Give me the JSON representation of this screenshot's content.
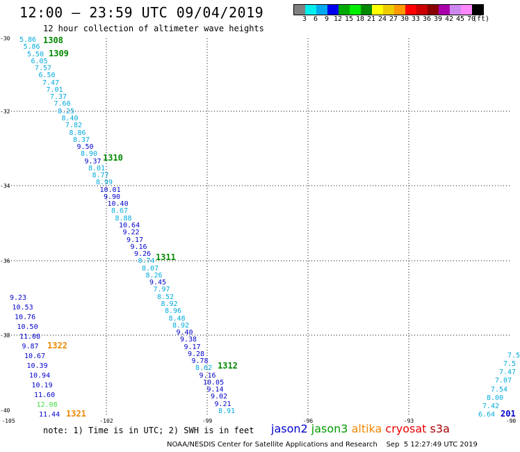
{
  "header": {
    "title": "12:00 – 23:59 UTC 09/04/2019",
    "subtitle": "12 hour collection of altimeter wave heights"
  },
  "legend": {
    "colors": [
      "#808080",
      "#00eeee",
      "#00aaee",
      "#0000ee",
      "#00aa00",
      "#00ee00",
      "#008800",
      "#ffff00",
      "#eecc00",
      "#ff9900",
      "#ff0000",
      "#cc0000",
      "#880000",
      "#aa00aa",
      "#cc88ee",
      "#ff88ff",
      "#000000"
    ],
    "labels": [
      "3",
      "6",
      "9",
      "12",
      "15",
      "18",
      "21",
      "24",
      "27",
      "30",
      "33",
      "36",
      "39",
      "42",
      "45",
      "70",
      "(ft)"
    ]
  },
  "satellite_colors": {
    "light": "#00aadd",
    "blue": "#0000cc",
    "green": "#008800",
    "orange": "#ee8800",
    "lightgreen": "#44dd44"
  },
  "axes": {
    "lat_labels": [
      "-30",
      "-32",
      "-34",
      "-36",
      "-38",
      "-40"
    ],
    "lon_labels": [
      "-105",
      "-102",
      "-99",
      "-96",
      "-93",
      "-90"
    ]
  },
  "tracks": [
    {
      "v": "5.86",
      "c": "light"
    },
    {
      "v": "5.86",
      "c": "light"
    },
    {
      "v": "5.50",
      "c": "light"
    },
    {
      "v": "6.05",
      "c": "light"
    },
    {
      "v": "7.57",
      "c": "light"
    },
    {
      "v": "6.50",
      "c": "light"
    },
    {
      "v": "7.47",
      "c": "light"
    },
    {
      "v": "7.01",
      "c": "light"
    },
    {
      "v": "7.37",
      "c": "light"
    },
    {
      "v": "7.60",
      "c": "light"
    },
    {
      "v": "8.25",
      "c": "light"
    },
    {
      "v": "8.40",
      "c": "light"
    },
    {
      "v": "7.82",
      "c": "light"
    },
    {
      "v": "8.86",
      "c": "light"
    },
    {
      "v": "8.37",
      "c": "light"
    },
    {
      "v": "9.50",
      "c": "blue"
    },
    {
      "v": "8.90",
      "c": "light"
    },
    {
      "v": "9.37",
      "c": "blue"
    },
    {
      "v": "8.01",
      "c": "light"
    },
    {
      "v": "8.77",
      "c": "light"
    },
    {
      "v": "8.99",
      "c": "light"
    },
    {
      "v": "10.01",
      "c": "blue"
    },
    {
      "v": "9.90",
      "c": "blue"
    },
    {
      "v": "10.40",
      "c": "blue"
    },
    {
      "v": "8.67",
      "c": "light"
    },
    {
      "v": "8.88",
      "c": "light"
    },
    {
      "v": "10.64",
      "c": "blue"
    },
    {
      "v": "9.22",
      "c": "blue"
    },
    {
      "v": "9.17",
      "c": "blue"
    },
    {
      "v": "9.16",
      "c": "blue"
    },
    {
      "v": "9.26",
      "c": "blue"
    },
    {
      "v": "8.74",
      "c": "light"
    },
    {
      "v": "8.07",
      "c": "light"
    },
    {
      "v": "8.26",
      "c": "light"
    },
    {
      "v": "9.45",
      "c": "blue"
    },
    {
      "v": "7.97",
      "c": "light"
    },
    {
      "v": "8.52",
      "c": "light"
    },
    {
      "v": "8.92",
      "c": "light"
    },
    {
      "v": "8.96",
      "c": "light"
    },
    {
      "v": "8.48",
      "c": "light"
    },
    {
      "v": "8.92",
      "c": "light"
    },
    {
      "v": "9.40",
      "c": "blue"
    },
    {
      "v": "9.38",
      "c": "blue"
    },
    {
      "v": "9.17",
      "c": "blue"
    },
    {
      "v": "9.28",
      "c": "blue"
    },
    {
      "v": "9.78",
      "c": "blue"
    },
    {
      "v": "8.62",
      "c": "light"
    },
    {
      "v": "9.16",
      "c": "blue"
    },
    {
      "v": "10.05",
      "c": "blue"
    },
    {
      "v": "9.14",
      "c": "blue"
    },
    {
      "v": "9.02",
      "c": "blue"
    },
    {
      "v": "9.21",
      "c": "blue"
    },
    {
      "v": "8.91",
      "c": "light"
    }
  ],
  "track2": [
    {
      "v": "9.23",
      "c": "blue"
    },
    {
      "v": "10.53",
      "c": "blue"
    },
    {
      "v": "10.76",
      "c": "blue"
    },
    {
      "v": "10.50",
      "c": "blue"
    },
    {
      "v": "11.08",
      "c": "blue"
    },
    {
      "v": "9.87",
      "c": "blue"
    },
    {
      "v": "10.67",
      "c": "blue"
    },
    {
      "v": "10.39",
      "c": "blue"
    },
    {
      "v": "10.94",
      "c": "blue"
    },
    {
      "v": "10.19",
      "c": "blue"
    },
    {
      "v": "11.60",
      "c": "blue"
    },
    {
      "v": "12.08",
      "c": "lightgreen"
    },
    {
      "v": "11.44",
      "c": "blue"
    }
  ],
  "track3": [
    {
      "v": "7.5",
      "c": "light"
    },
    {
      "v": "7.5",
      "c": "light"
    },
    {
      "v": "7.47",
      "c": "light"
    },
    {
      "v": "7.07",
      "c": "light"
    },
    {
      "v": "7.54",
      "c": "light"
    },
    {
      "v": "8.00",
      "c": "light"
    },
    {
      "v": "7.42",
      "c": "light"
    },
    {
      "v": "6.64",
      "c": "light"
    }
  ],
  "pass_labels": [
    {
      "t": "1308",
      "c": "green"
    },
    {
      "t": "1309",
      "c": "green"
    },
    {
      "t": "1310",
      "c": "green"
    },
    {
      "t": "1311",
      "c": "green"
    },
    {
      "t": "1312",
      "c": "green"
    },
    {
      "t": "1322",
      "c": "orange"
    },
    {
      "t": "1321",
      "c": "orange"
    },
    {
      "t": "201",
      "c": "blue"
    }
  ],
  "footer": {
    "note": "note: 1) Time is in UTC; 2) SWH is in feet",
    "satellites": [
      {
        "name": "jason2",
        "color": "#0000cc"
      },
      {
        "name": "jason3",
        "color": "#009900"
      },
      {
        "name": "altika",
        "color": "#ee8800"
      },
      {
        "name": "cryosat",
        "color": "#ee0000"
      },
      {
        "name": "s3a",
        "color": "#aa0000"
      }
    ],
    "credit": "NOAA/NESDIS Center for Satellite Applications and Research    Sep  5 12:27:49 UTC 2019"
  }
}
